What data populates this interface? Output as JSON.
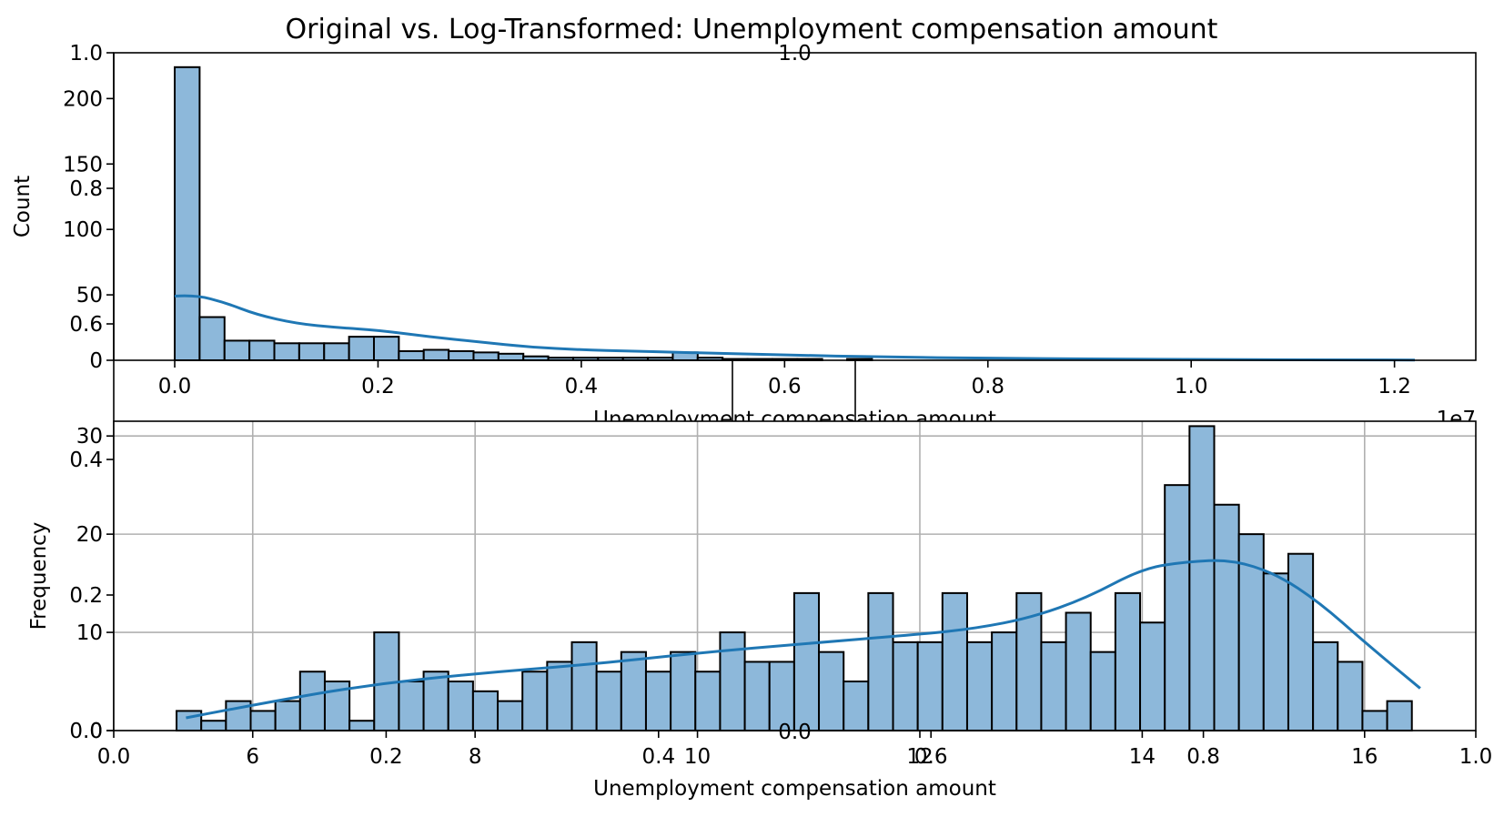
{
  "figure": {
    "title": "Original vs. Log-Transformed: Unemployment compensation amount"
  },
  "overlay": {
    "xticks": [
      "0.0",
      "0.2",
      "0.4",
      "0.6",
      "0.8",
      "1.0"
    ],
    "yticks": [
      "0.0",
      "0.2",
      "0.4",
      "0.6",
      "0.8",
      "1.0"
    ],
    "top_label": "1.0",
    "mid_label": "0.0"
  },
  "chart_data": [
    {
      "type": "bar",
      "subtype": "histogram",
      "title": "",
      "xlabel": "Unemployment compensation amount",
      "ylabel": "Count",
      "x_offset_label": "1e7",
      "xlim": [
        -0.06,
        1.28
      ],
      "ylim": [
        0,
        235
      ],
      "xticks": [
        0.0,
        0.2,
        0.4,
        0.6,
        0.8,
        1.0,
        1.2
      ],
      "xtick_labels": [
        "0.0",
        "0.2",
        "0.4",
        "0.6",
        "0.8",
        "1.0",
        "1.2"
      ],
      "yticks": [
        0,
        50,
        100,
        150,
        200
      ],
      "ytick_labels": [
        "0",
        "50",
        "100",
        "150",
        "200"
      ],
      "grid": false,
      "bin_start": 0.0,
      "bin_width": 0.0245,
      "counts": [
        224,
        33,
        15,
        15,
        13,
        13,
        13,
        18,
        18,
        7,
        8,
        7,
        6,
        5,
        3,
        2,
        2,
        2,
        2,
        2,
        6,
        2,
        1,
        1,
        1,
        1,
        0,
        1,
        0,
        0,
        0,
        0,
        0,
        0,
        0,
        0,
        0,
        0,
        0,
        0,
        0,
        0,
        0,
        0,
        0,
        0,
        0,
        0,
        0,
        0
      ],
      "kde": {
        "x": [
          0.0,
          0.02,
          0.05,
          0.08,
          0.12,
          0.16,
          0.2,
          0.25,
          0.3,
          0.35,
          0.4,
          0.45,
          0.5,
          0.6,
          0.7,
          0.8,
          1.0,
          1.22
        ],
        "y": [
          49,
          50,
          44,
          35,
          28,
          25,
          23,
          18,
          14,
          10,
          8,
          7,
          6,
          4,
          2.5,
          1.5,
          0.5,
          0.2
        ]
      }
    },
    {
      "type": "bar",
      "subtype": "histogram",
      "title": "",
      "xlabel": "Unemployment compensation amount",
      "ylabel": "Frequency",
      "xlim": [
        4.75,
        17.0
      ],
      "ylim": [
        0,
        31.5
      ],
      "xticks": [
        6,
        8,
        10,
        12,
        14,
        16
      ],
      "xtick_labels": [
        "6",
        "8",
        "10",
        "12",
        "14",
        "16"
      ],
      "yticks": [
        0,
        10,
        20,
        30
      ],
      "ytick_labels": [
        "0",
        "10",
        "20",
        "30"
      ],
      "grid": true,
      "bin_start": 5.315,
      "bin_width": 0.2222,
      "counts": [
        2,
        1,
        3,
        2,
        3,
        6,
        5,
        1,
        10,
        5,
        6,
        5,
        4,
        3,
        6,
        7,
        9,
        6,
        8,
        6,
        8,
        6,
        10,
        7,
        7,
        14,
        8,
        5,
        14,
        9,
        9,
        14,
        9,
        10,
        14,
        9,
        12,
        8,
        14,
        11,
        25,
        31,
        23,
        20,
        16,
        18,
        9,
        7,
        2,
        3
      ],
      "kde": {
        "x": [
          5.4,
          6.0,
          7.0,
          8.0,
          9.0,
          10.0,
          11.0,
          12.0,
          12.5,
          13.0,
          13.5,
          14.0,
          14.4,
          14.8,
          15.2,
          15.6,
          16.0,
          16.5
        ],
        "y": [
          1.3,
          2.6,
          4.6,
          5.8,
          6.7,
          7.9,
          8.9,
          9.8,
          10.4,
          11.5,
          13.5,
          16.5,
          17.2,
          17.4,
          16.0,
          13.0,
          9.0,
          4.3
        ]
      }
    }
  ]
}
